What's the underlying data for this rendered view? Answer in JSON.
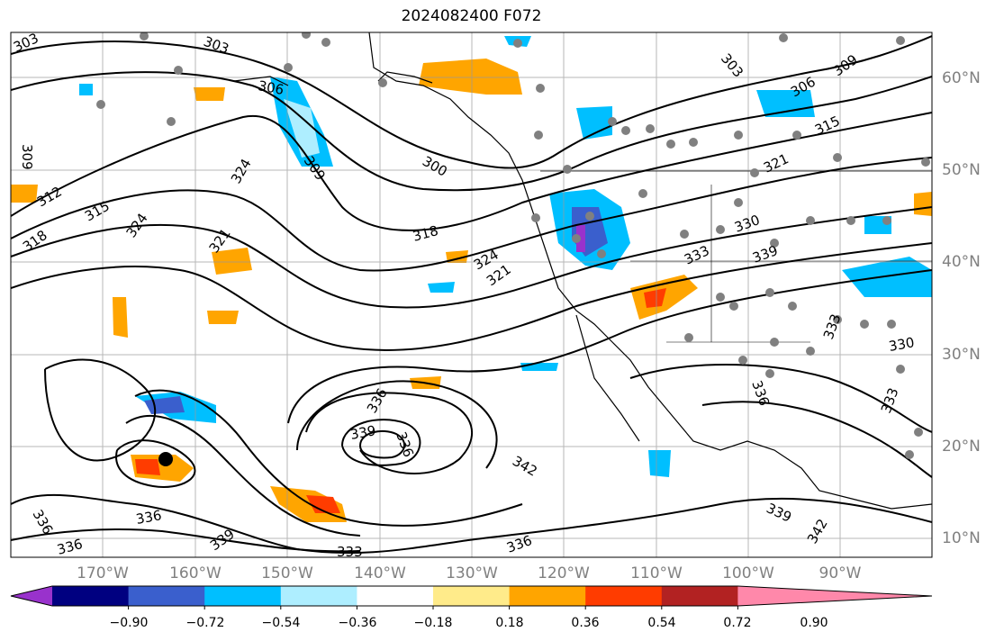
{
  "title": "2024082400 F072",
  "latitude_labels": [
    "60°N",
    "50°N",
    "40°N",
    "30°N",
    "20°N",
    "10°N"
  ],
  "longitude_labels": [
    "170°W",
    "160°W",
    "150°W",
    "140°W",
    "130°W",
    "120°W",
    "110°W",
    "100°W",
    "90°W"
  ],
  "colorbar": {
    "tick_labels": [
      "−0.90",
      "−0.72",
      "−0.54",
      "−0.36",
      "−0.18",
      "0.18",
      "0.36",
      "0.54",
      "0.72",
      "0.90"
    ],
    "colors": [
      "#9932cc",
      "#000080",
      "#3a5fcd",
      "#00bfff",
      "#aeeeff",
      "#ffffff",
      "#ffeb8a",
      "#ffa500",
      "#ff3c00",
      "#b22222",
      "#ff88aa"
    ]
  },
  "contour_labels": [
    "303",
    "303",
    "303",
    "306",
    "306",
    "309",
    "309",
    "315",
    "321",
    "324",
    "324",
    "324",
    "321",
    "318",
    "318",
    "315",
    "312",
    "321",
    "300",
    "309",
    "330",
    "333",
    "339",
    "336",
    "336",
    "339",
    "336",
    "333",
    "336",
    "342",
    "339",
    "342",
    "333",
    "333",
    "336",
    "339",
    "336",
    "336",
    "330"
  ],
  "markers": {
    "storm_center": "black-dot",
    "stations": "gray-dots"
  }
}
